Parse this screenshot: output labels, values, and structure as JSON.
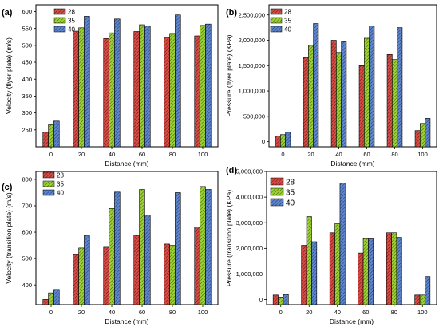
{
  "colors": {
    "28": "#d94a45",
    "35": "#9cd134",
    "40": "#5d86cf"
  },
  "chart_data": [
    {
      "panel": "(a)",
      "type": "bar",
      "xlabel": "Distance (mm)",
      "ylabel": "Velocity (flyer plate) (m/s)",
      "categories": [
        "0",
        "20",
        "40",
        "60",
        "80",
        "100"
      ],
      "ylim": [
        200,
        620
      ],
      "yticks": [
        250,
        300,
        350,
        400,
        450,
        500,
        550,
        600
      ],
      "ytick_labels": [
        "250",
        "300",
        "350",
        "400",
        "450",
        "500",
        "550",
        "600"
      ],
      "legend_position": "top-left",
      "series": [
        {
          "name": "28",
          "values": [
            243,
            542,
            520,
            541,
            522,
            528
          ]
        },
        {
          "name": "35",
          "values": [
            265,
            552,
            537,
            561,
            533,
            559
          ]
        },
        {
          "name": "40",
          "values": [
            276,
            586,
            578,
            557,
            590,
            563
          ]
        }
      ]
    },
    {
      "panel": "(b)",
      "type": "bar",
      "xlabel": "Distance (mm)",
      "ylabel": "Pressure (flyer plate) (KPa)",
      "categories": [
        "0",
        "20",
        "40",
        "60",
        "80",
        "100"
      ],
      "ylim": [
        -100000,
        2700000
      ],
      "yticks": [
        0,
        500000,
        1000000,
        1500000,
        2000000,
        2500000
      ],
      "ytick_labels": [
        "0",
        "500,000",
        "1,000,000",
        "1,500,000",
        "2,000,000",
        "2,500,000"
      ],
      "legend_position": "top-left",
      "series": [
        {
          "name": "28",
          "values": [
            110000,
            1660000,
            2000000,
            1500000,
            1720000,
            220000
          ]
        },
        {
          "name": "35",
          "values": [
            140000,
            1900000,
            1760000,
            2040000,
            1620000,
            360000
          ]
        },
        {
          "name": "40",
          "values": [
            185000,
            2330000,
            1970000,
            2280000,
            2250000,
            460000
          ]
        }
      ]
    },
    {
      "panel": "(c)",
      "type": "bar",
      "xlabel": "Distance (mm)",
      "ylabel": "Velocity (transition plate) (m/s)",
      "categories": [
        "0",
        "20",
        "40",
        "60",
        "80",
        "100"
      ],
      "ylim": [
        325,
        830
      ],
      "yticks": [
        400,
        500,
        600,
        700,
        800
      ],
      "ytick_labels": [
        "400",
        "500",
        "600",
        "700",
        "800"
      ],
      "legend_position": "top-left",
      "series": [
        {
          "name": "28",
          "values": [
            345,
            515,
            543,
            588,
            555,
            620
          ]
        },
        {
          "name": "35",
          "values": [
            370,
            540,
            690,
            762,
            550,
            773
          ]
        },
        {
          "name": "40",
          "values": [
            383,
            588,
            752,
            665,
            750,
            762
          ]
        }
      ]
    },
    {
      "panel": "(d)",
      "type": "bar",
      "xlabel": "Distance (mm)",
      "ylabel": "Pressure (transition plate) (KPa)",
      "categories": [
        "0",
        "20",
        "40",
        "60",
        "80",
        "100"
      ],
      "ylim": [
        -200000,
        5000000
      ],
      "yticks": [
        0,
        1000000,
        2000000,
        3000000,
        4000000,
        5000000
      ],
      "ytick_labels": [
        "0",
        "1,000,000",
        "2,000,000",
        "3,000,000",
        "4,000,000",
        "5,000,000"
      ],
      "legend_position": "top-left",
      "series": [
        {
          "name": "28",
          "values": [
            180000,
            2120000,
            2610000,
            1820000,
            2610000,
            180000
          ]
        },
        {
          "name": "35",
          "values": [
            100000,
            3240000,
            2960000,
            2380000,
            2610000,
            180000
          ]
        },
        {
          "name": "40",
          "values": [
            200000,
            2260000,
            4550000,
            2370000,
            2430000,
            900000
          ]
        }
      ]
    }
  ]
}
